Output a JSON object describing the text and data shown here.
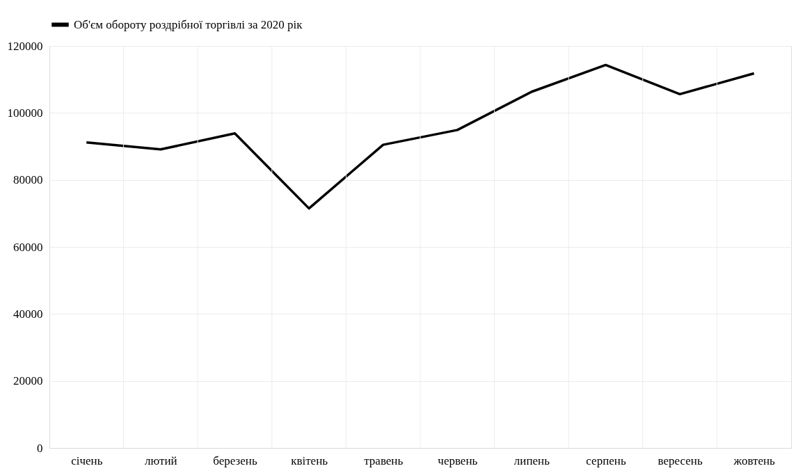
{
  "chart_data": {
    "type": "line",
    "categories": [
      "січень",
      "лютий",
      "березень",
      "квітень",
      "травень",
      "червень",
      "липень",
      "серпень",
      "вересень",
      "жовтень"
    ],
    "series": [
      {
        "name": "Об'єм обороту роздрібної торгівлі за 2020 рік",
        "color": "#000000",
        "values": [
          91200,
          89100,
          93900,
          71500,
          90500,
          94900,
          106300,
          114300,
          105600,
          111800
        ]
      }
    ],
    "ylim": [
      0,
      120000
    ],
    "yticks": [
      0,
      20000,
      40000,
      60000,
      80000,
      100000,
      120000
    ],
    "grid": true,
    "legend": "top",
    "marker": "none",
    "line_style": "solid"
  }
}
